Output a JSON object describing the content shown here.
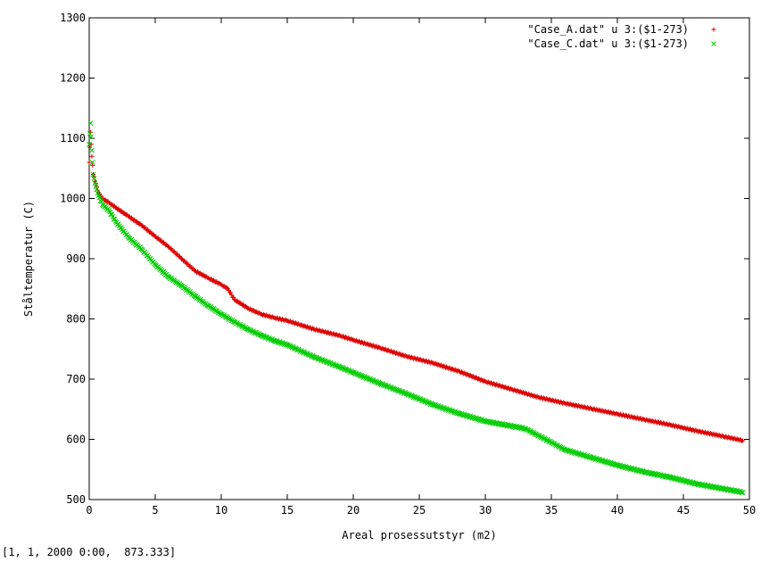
{
  "status_bar": {
    "coordinates": "[1, 1, 2000 0:00,  873.333]"
  },
  "colors": {
    "series_a": "#dd0000",
    "series_c": "#00cc00",
    "axis": "#000000",
    "background": "#ffffff"
  },
  "chart_data": {
    "type": "scatter",
    "title": "",
    "xlabel": "Areal prosessutstyr (m2)",
    "ylabel": "Ståltemperatur (C)",
    "xlim": [
      0,
      50
    ],
    "ylim": [
      500,
      1300
    ],
    "xticks": [
      "0",
      "5",
      "10",
      "15",
      "20",
      "25",
      "30",
      "35",
      "40",
      "45",
      "50"
    ],
    "yticks": [
      "500",
      "600",
      "700",
      "800",
      "900",
      "1000",
      "1100",
      "1200",
      "1300"
    ],
    "grid": false,
    "legend_position": "top-right",
    "series": [
      {
        "name": "\"Case_A.dat\" u 3:($1-273)",
        "marker": "+",
        "x": [
          0,
          0.1,
          0.2,
          0.3,
          0.5,
          0.7,
          1,
          1.5,
          2,
          3,
          4,
          5,
          6,
          7,
          8,
          9,
          10,
          10.5,
          11,
          12,
          13,
          14,
          15,
          17,
          19,
          20,
          22,
          24,
          26,
          28,
          30,
          32,
          34,
          36,
          38,
          40,
          42,
          44,
          46,
          48,
          49.5
        ],
        "y": [
          1060,
          1110,
          1070,
          1040,
          1025,
          1010,
          1000,
          993,
          985,
          970,
          955,
          937,
          920,
          900,
          880,
          868,
          857,
          850,
          832,
          818,
          808,
          802,
          797,
          783,
          772,
          765,
          752,
          738,
          727,
          713,
          696,
          683,
          670,
          660,
          651,
          642,
          633,
          624,
          614,
          605,
          598
        ]
      },
      {
        "name": "\"Case_C.dat\" u 3:($1-273)",
        "marker": "x",
        "x": [
          0,
          0.1,
          0.2,
          0.3,
          0.5,
          0.7,
          1,
          1.5,
          2,
          3,
          4,
          5,
          6,
          7,
          8,
          9,
          10,
          11,
          12,
          13,
          14,
          15,
          17,
          19,
          20,
          22,
          24,
          26,
          28,
          30,
          33,
          35,
          36,
          38,
          40,
          42,
          44,
          46,
          48,
          49.5
        ],
        "y": [
          1090,
          1125,
          1080,
          1040,
          1020,
          1005,
          990,
          980,
          962,
          935,
          915,
          890,
          870,
          855,
          838,
          822,
          808,
          795,
          783,
          773,
          764,
          757,
          737,
          720,
          711,
          693,
          676,
          658,
          643,
          630,
          618,
          595,
          583,
          570,
          557,
          546,
          537,
          526,
          518,
          512
        ]
      }
    ]
  }
}
